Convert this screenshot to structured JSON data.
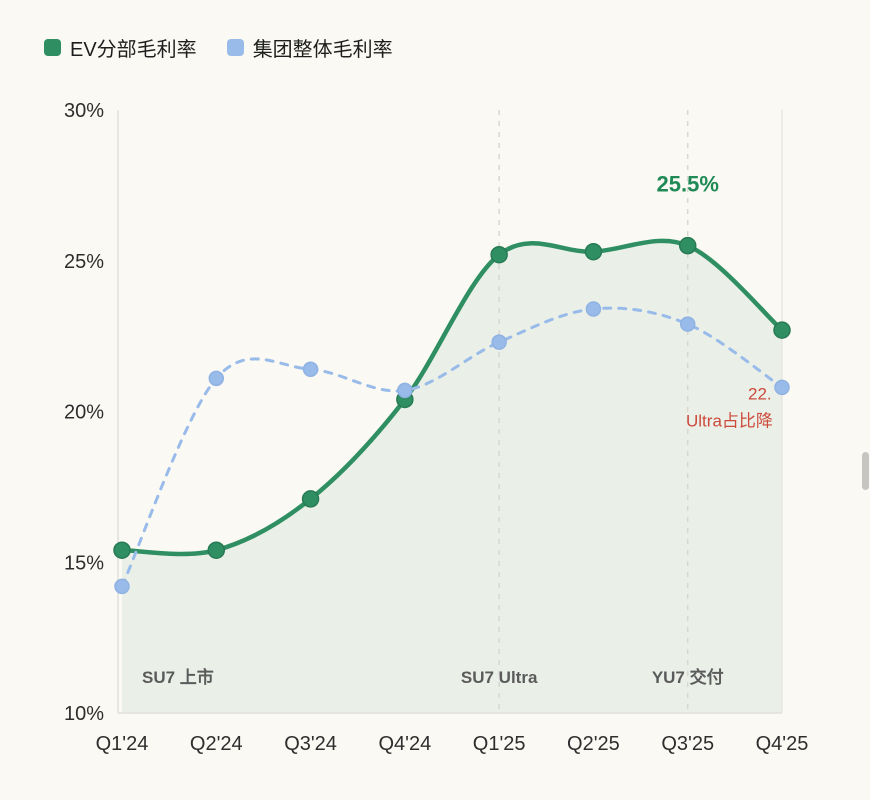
{
  "page": {
    "background": "#faf9f3"
  },
  "legend": {
    "items": [
      {
        "label": "EV分部毛利率",
        "color": "#2f8f63"
      },
      {
        "label": "集团整体毛利率",
        "color": "#98bbea"
      }
    ]
  },
  "chart_data": {
    "type": "line",
    "categories": [
      "Q1'24",
      "Q2'24",
      "Q3'24",
      "Q4'24",
      "Q1'25",
      "Q2'25",
      "Q3'25",
      "Q4'25"
    ],
    "series": [
      {
        "name": "EV分部毛利率",
        "color": "#2f8f63",
        "style": "solid",
        "area": true,
        "smooth": true,
        "marker_r": 8,
        "values": [
          15.4,
          15.4,
          17.1,
          20.4,
          25.2,
          25.3,
          25.5,
          22.7
        ]
      },
      {
        "name": "集团整体毛利率",
        "color": "#98bbea",
        "style": "dashed",
        "area": false,
        "smooth": true,
        "marker_r": 7,
        "values": [
          14.2,
          21.1,
          21.4,
          20.7,
          22.3,
          23.4,
          22.9,
          20.8
        ]
      }
    ],
    "ylim": [
      10,
      30
    ],
    "yticks": [
      10,
      15,
      20,
      25,
      30
    ],
    "ytick_format": "{v}%",
    "grid_vertical_at": [
      "Q1'25",
      "Q3'25"
    ],
    "area_fill": "rgba(47,143,99,0.08)",
    "grid_color": "#d9d7d0",
    "axis_color": "#e2e0d9",
    "tick_color": "#2e2e2e",
    "event_color": "#5b5b5b",
    "legend_position": "top-left",
    "annotations": [
      {
        "text": "25.5%",
        "color": "#1f8a56",
        "x_category": "Q3'25",
        "y_value": 27.3,
        "dx": 0,
        "anchor": "middle",
        "size": 22,
        "bold": true
      },
      {
        "text": "22.",
        "color": "#cd4a3c",
        "x_category": "Q4'25",
        "y_value": 20.4,
        "dx": -34,
        "anchor": "start",
        "size": 17,
        "bold": false
      },
      {
        "text": "Ultra占比降",
        "color": "#cd4a3c",
        "x_category": "Q4'25",
        "y_value": 19.5,
        "dx": -96,
        "anchor": "start",
        "size": 17,
        "bold": false
      }
    ],
    "events": [
      {
        "text": "SU7 上市",
        "x_category": "Q1'24",
        "dx": 20,
        "anchor": "start",
        "y_value": 11.0
      },
      {
        "text": "SU7 Ultra",
        "x_category": "Q1'25",
        "dx": 0,
        "anchor": "middle",
        "y_value": 11.0
      },
      {
        "text": "YU7 交付",
        "x_category": "Q3'25",
        "dx": 0,
        "anchor": "middle",
        "y_value": 11.0
      }
    ]
  }
}
